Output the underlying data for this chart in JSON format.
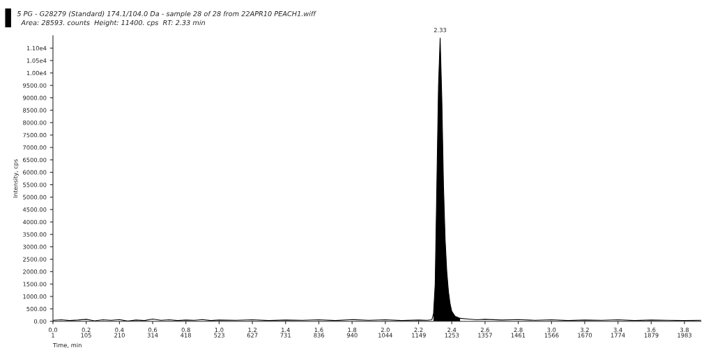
{
  "chart_data": {
    "type": "line",
    "title": "5 PG - G28279 (Standard) 174.1/104.0 Da - sample 28 of 28 from 22APR10 PEACH1.wiff",
    "subtitle": "Area: 28593. counts  Height: 11400. cps  RT: 2.33 min",
    "xlabel": "Time, min",
    "ylabel": "Intensity, cps",
    "xlim": [
      0,
      3.9
    ],
    "ylim": [
      0,
      11500
    ],
    "xticks": [
      {
        "value": 0.0,
        "label": "0.0"
      },
      0.2,
      0.4,
      0.6,
      0.8,
      {
        "value": 1.0,
        "label": "1.0"
      },
      1.2,
      1.4,
      1.6,
      1.8,
      {
        "value": 2.0,
        "label": "2.0"
      },
      2.2,
      2.4,
      2.6,
      2.8,
      {
        "value": 3.0,
        "label": "3.0"
      },
      3.2,
      3.4,
      3.6,
      3.8
    ],
    "x2lim": [
      1,
      2035
    ],
    "x2ticks": [
      1,
      105,
      210,
      314,
      418,
      523,
      627,
      731,
      836,
      940,
      1044,
      1149,
      1253,
      1357,
      1461,
      1566,
      1670,
      1774,
      1879,
      1983
    ],
    "yticks": [
      {
        "value": 0,
        "label": "0.00"
      },
      {
        "value": 500,
        "label": "500.00"
      },
      {
        "value": 1000,
        "label": "1000.00"
      },
      {
        "value": 1500,
        "label": "1500.00"
      },
      {
        "value": 2000,
        "label": "2000.00"
      },
      {
        "value": 2500,
        "label": "2500.00"
      },
      {
        "value": 3000,
        "label": "3000.00"
      },
      {
        "value": 3500,
        "label": "3500.00"
      },
      {
        "value": 4000,
        "label": "4000.00"
      },
      {
        "value": 4500,
        "label": "4500.00"
      },
      {
        "value": 5000,
        "label": "5000.00"
      },
      {
        "value": 5500,
        "label": "5500.00"
      },
      {
        "value": 6000,
        "label": "6000.00"
      },
      {
        "value": 6500,
        "label": "6500.00"
      },
      {
        "value": 7000,
        "label": "7000.00"
      },
      {
        "value": 7500,
        "label": "7500.00"
      },
      {
        "value": 8000,
        "label": "8000.00"
      },
      {
        "value": 8500,
        "label": "8500.00"
      },
      {
        "value": 9000,
        "label": "9000.00"
      },
      {
        "value": 9500,
        "label": "9500.00"
      },
      {
        "value": 10000,
        "label": "1.00e4"
      },
      {
        "value": 10500,
        "label": "1.05e4"
      },
      {
        "value": 11000,
        "label": "1.10e4"
      }
    ],
    "grid": false,
    "legend": false,
    "annotations": [
      {
        "text": "2.33",
        "x": 2.33,
        "y": 11400
      }
    ],
    "series": [
      {
        "color": "#000000",
        "x": [
          0.0,
          0.05,
          0.1,
          0.15,
          0.2,
          0.25,
          0.3,
          0.35,
          0.4,
          0.45,
          0.5,
          0.55,
          0.6,
          0.65,
          0.7,
          0.75,
          0.8,
          0.85,
          0.9,
          0.95,
          1.0,
          1.1,
          1.2,
          1.3,
          1.4,
          1.5,
          1.6,
          1.7,
          1.8,
          1.9,
          2.0,
          2.1,
          2.2,
          2.25,
          2.28,
          2.29,
          2.3,
          2.31,
          2.32,
          2.33,
          2.34,
          2.35,
          2.36,
          2.37,
          2.38,
          2.39,
          2.4,
          2.42,
          2.45,
          2.5,
          2.55,
          2.6,
          2.7,
          2.8,
          2.9,
          3.0,
          3.1,
          3.2,
          3.3,
          3.4,
          3.5,
          3.6,
          3.7,
          3.8,
          3.9
        ],
        "values": [
          40,
          60,
          30,
          50,
          80,
          20,
          60,
          40,
          70,
          10,
          50,
          30,
          90,
          40,
          60,
          30,
          50,
          40,
          70,
          30,
          50,
          40,
          60,
          30,
          50,
          40,
          60,
          30,
          70,
          40,
          60,
          30,
          50,
          40,
          60,
          300,
          1500,
          5500,
          9500,
          11400,
          9000,
          5500,
          3300,
          2000,
          1200,
          700,
          400,
          200,
          120,
          90,
          60,
          80,
          50,
          70,
          40,
          60,
          30,
          50,
          40,
          60,
          30,
          50,
          40,
          30,
          40
        ]
      },
      {
        "type": "area",
        "color": "#000000",
        "x": [
          2.29,
          2.3,
          2.31,
          2.32,
          2.33,
          2.34,
          2.35,
          2.36,
          2.37,
          2.38,
          2.39,
          2.4,
          2.42,
          2.45
        ],
        "values": [
          300,
          1500,
          5500,
          9500,
          11400,
          9000,
          5500,
          3300,
          2000,
          1200,
          700,
          400,
          200,
          120
        ]
      }
    ]
  }
}
